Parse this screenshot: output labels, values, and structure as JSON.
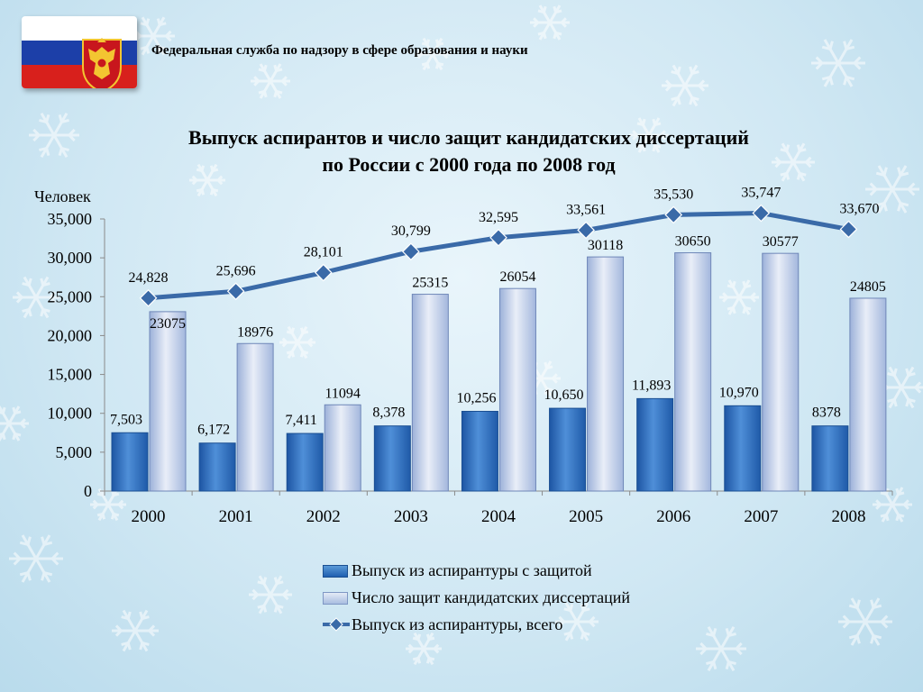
{
  "header": {
    "agency": "Федеральная служба по надзору в сфере образования и науки",
    "flag_colors": [
      "#ffffff",
      "#1c3fa8",
      "#d8201c"
    ],
    "emblem_icon": "coat-of-arms-icon"
  },
  "chart_data": {
    "type": "bar",
    "title_lines": [
      "Выпуск аспирантов и число защит кандидатских диссертаций",
      "по России с 2000 года по 2008 год"
    ],
    "ylabel": "Человек",
    "xlabel": "",
    "ylim": [
      0,
      35000
    ],
    "yticks": [
      "0",
      "5,000",
      "10,000",
      "15,000",
      "20,000",
      "25,000",
      "30,000",
      "35,000"
    ],
    "ytick_values": [
      0,
      5000,
      10000,
      15000,
      20000,
      25000,
      30000,
      35000
    ],
    "categories": [
      "2000",
      "2001",
      "2002",
      "2003",
      "2004",
      "2005",
      "2006",
      "2007",
      "2008"
    ],
    "series": [
      {
        "name": "Выпуск из аспирантуры с защитой",
        "type": "bar",
        "color": "#2e6fc4",
        "values": [
          7503,
          6172,
          7411,
          8378,
          10256,
          10650,
          11893,
          10970,
          8378
        ],
        "labels": [
          "7,503",
          "6,172",
          "7,411",
          "8,378",
          "10,256",
          "10,650",
          "11,893",
          "10,970",
          "8378"
        ]
      },
      {
        "name": "Число защит кандидатских диссертаций",
        "type": "bar",
        "color": "#b8c8e6",
        "values": [
          23075,
          18976,
          11094,
          25315,
          26054,
          30118,
          30650,
          30577,
          24805
        ],
        "labels": [
          "23075",
          "18976",
          "11094",
          "25315",
          "26054",
          "30118",
          "30650",
          "30577",
          "24805"
        ]
      },
      {
        "name": "Выпуск из аспирантуры, всего",
        "type": "line",
        "color": "#3a6aa8",
        "marker": "diamond",
        "values": [
          24828,
          25696,
          28101,
          30799,
          32595,
          33561,
          35530,
          35747,
          33670
        ],
        "labels": [
          "24,828",
          "25,696",
          "28,101",
          "30,799",
          "32,595",
          "33,561",
          "35,530",
          "35,747",
          "33,670"
        ]
      }
    ],
    "legend_position": "bottom",
    "grid": false
  }
}
